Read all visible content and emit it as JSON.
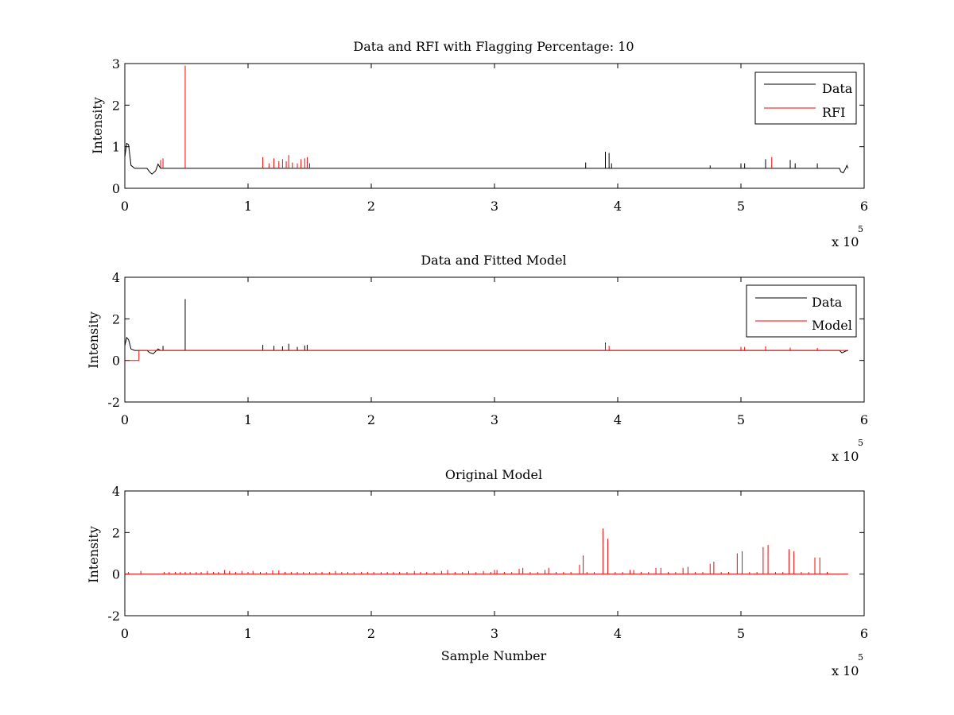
{
  "chart_data": [
    {
      "type": "line",
      "title": "Data and RFI with Flagging Percentage: 10",
      "xlabel": "",
      "ylabel": "Intensity",
      "xlim": [
        0,
        600000
      ],
      "ylim": [
        0,
        3
      ],
      "x_ticks": [
        0,
        100000,
        200000,
        300000,
        400000,
        500000,
        600000
      ],
      "x_tick_labels": [
        "0",
        "1",
        "2",
        "3",
        "4",
        "5",
        "6"
      ],
      "y_ticks": [
        0,
        1,
        2,
        3
      ],
      "y_tick_labels": [
        "0",
        "1",
        "2",
        "3"
      ],
      "x_exponent": {
        "base": "x 10",
        "power": "5"
      },
      "legend": {
        "position": "top-right",
        "entries": [
          "Data",
          "RFI"
        ]
      },
      "series": [
        {
          "name": "Data",
          "color": "#000000",
          "baseline": 0.48,
          "points": [
            [
              0,
              0.75
            ],
            [
              1500,
              1.08
            ],
            [
              3000,
              1.05
            ],
            [
              5000,
              0.55
            ],
            [
              8000,
              0.48
            ],
            [
              18000,
              0.48
            ],
            [
              20000,
              0.4
            ],
            [
              22000,
              0.34
            ],
            [
              25000,
              0.42
            ],
            [
              27000,
              0.58
            ],
            [
              29000,
              0.48
            ],
            [
              40000,
              0.48
            ],
            [
              580000,
              0.48
            ],
            [
              581000,
              0.4
            ],
            [
              583000,
              0.37
            ],
            [
              585000,
              0.48
            ],
            [
              586000,
              0.55
            ],
            [
              587000,
              0.48
            ]
          ],
          "spikes": [
            [
              374000,
              0.62
            ],
            [
              390000,
              0.88
            ],
            [
              393000,
              0.85
            ],
            [
              395000,
              0.6
            ],
            [
              475000,
              0.55
            ],
            [
              500000,
              0.6
            ],
            [
              503000,
              0.6
            ],
            [
              520000,
              0.7
            ],
            [
              540000,
              0.68
            ],
            [
              544000,
              0.6
            ],
            [
              562000,
              0.6
            ]
          ]
        },
        {
          "name": "RFI",
          "color": "#ff0000",
          "spikes": [
            [
              29000,
              0.68
            ],
            [
              31000,
              0.72
            ],
            [
              49000,
              2.95
            ],
            [
              112000,
              0.75
            ],
            [
              117000,
              0.6
            ],
            [
              121000,
              0.72
            ],
            [
              125000,
              0.65
            ],
            [
              128000,
              0.7
            ],
            [
              131000,
              0.65
            ],
            [
              133000,
              0.8
            ],
            [
              136000,
              0.62
            ],
            [
              140000,
              0.6
            ],
            [
              143000,
              0.7
            ],
            [
              146000,
              0.72
            ],
            [
              148000,
              0.75
            ],
            [
              150000,
              0.6
            ],
            [
              525000,
              0.75
            ]
          ]
        }
      ]
    },
    {
      "type": "line",
      "title": "Data and Fitted Model",
      "xlabel": "",
      "ylabel": "Intensity",
      "xlim": [
        0,
        600000
      ],
      "ylim": [
        -2,
        4
      ],
      "x_ticks": [
        0,
        100000,
        200000,
        300000,
        400000,
        500000,
        600000
      ],
      "x_tick_labels": [
        "0",
        "1",
        "2",
        "3",
        "4",
        "5",
        "6"
      ],
      "y_ticks": [
        -2,
        0,
        2,
        4
      ],
      "y_tick_labels": [
        "-2",
        "0",
        "2",
        "4"
      ],
      "x_exponent": {
        "base": "x 10",
        "power": "5"
      },
      "legend": {
        "position": "top-right",
        "entries": [
          "Data",
          "Model"
        ]
      },
      "series": [
        {
          "name": "Data",
          "color": "#000000",
          "baseline": 0.48,
          "points": [
            [
              0,
              0.7
            ],
            [
              1500,
              1.1
            ],
            [
              3000,
              1.0
            ],
            [
              5000,
              0.55
            ],
            [
              8000,
              0.48
            ],
            [
              18000,
              0.48
            ],
            [
              20000,
              0.38
            ],
            [
              23000,
              0.32
            ],
            [
              27000,
              0.55
            ],
            [
              29000,
              0.48
            ],
            [
              580000,
              0.48
            ],
            [
              582000,
              0.36
            ],
            [
              585000,
              0.45
            ],
            [
              587000,
              0.48
            ]
          ],
          "spikes": [
            [
              31000,
              0.7
            ],
            [
              49000,
              2.95
            ],
            [
              112000,
              0.75
            ],
            [
              121000,
              0.7
            ],
            [
              128000,
              0.68
            ],
            [
              133000,
              0.8
            ],
            [
              140000,
              0.65
            ],
            [
              146000,
              0.72
            ],
            [
              148000,
              0.75
            ],
            [
              390000,
              0.85
            ]
          ]
        },
        {
          "name": "Model",
          "color": "#ff0000",
          "points": [
            [
              0,
              0.0
            ],
            [
              11500,
              0.0
            ],
            [
              11500,
              0.48
            ],
            [
              587000,
              0.48
            ]
          ],
          "spikes": [
            [
              390000,
              0.8
            ],
            [
              393000,
              0.7
            ],
            [
              500000,
              0.65
            ],
            [
              503000,
              0.65
            ],
            [
              520000,
              0.68
            ],
            [
              540000,
              0.62
            ],
            [
              562000,
              0.6
            ]
          ]
        }
      ]
    },
    {
      "type": "line",
      "title": "Original Model",
      "xlabel": "Sample Number",
      "ylabel": "Intensity",
      "xlim": [
        0,
        600000
      ],
      "ylim": [
        -2,
        4
      ],
      "x_ticks": [
        0,
        100000,
        200000,
        300000,
        400000,
        500000,
        600000
      ],
      "x_tick_labels": [
        "0",
        "1",
        "2",
        "3",
        "4",
        "5",
        "6"
      ],
      "y_ticks": [
        -2,
        0,
        2,
        4
      ],
      "y_tick_labels": [
        "-2",
        "0",
        "2",
        "4"
      ],
      "x_exponent": {
        "base": "x 10",
        "power": "5"
      },
      "series": [
        {
          "name": "",
          "color": "#ff0000",
          "baseline": 0.0,
          "spikes": [
            [
              3000,
              0.1
            ],
            [
              13000,
              0.15
            ],
            [
              32000,
              0.1
            ],
            [
              36000,
              0.1
            ],
            [
              41000,
              0.1
            ],
            [
              45000,
              0.1
            ],
            [
              49000,
              0.1
            ],
            [
              53000,
              0.1
            ],
            [
              58000,
              0.1
            ],
            [
              62000,
              0.1
            ],
            [
              67000,
              0.15
            ],
            [
              72000,
              0.1
            ],
            [
              76000,
              0.1
            ],
            [
              81000,
              0.2
            ],
            [
              85000,
              0.15
            ],
            [
              90000,
              0.1
            ],
            [
              95000,
              0.15
            ],
            [
              100000,
              0.1
            ],
            [
              104000,
              0.15
            ],
            [
              110000,
              0.1
            ],
            [
              115000,
              0.1
            ],
            [
              120000,
              0.18
            ],
            [
              125000,
              0.18
            ],
            [
              130000,
              0.1
            ],
            [
              135000,
              0.1
            ],
            [
              140000,
              0.1
            ],
            [
              145000,
              0.1
            ],
            [
              150000,
              0.1
            ],
            [
              155000,
              0.1
            ],
            [
              160000,
              0.1
            ],
            [
              166000,
              0.1
            ],
            [
              171000,
              0.15
            ],
            [
              176000,
              0.1
            ],
            [
              181000,
              0.1
            ],
            [
              186000,
              0.1
            ],
            [
              192000,
              0.1
            ],
            [
              197000,
              0.1
            ],
            [
              202000,
              0.1
            ],
            [
              208000,
              0.1
            ],
            [
              213000,
              0.1
            ],
            [
              218000,
              0.1
            ],
            [
              223000,
              0.1
            ],
            [
              229000,
              0.1
            ],
            [
              235000,
              0.15
            ],
            [
              240000,
              0.1
            ],
            [
              245000,
              0.1
            ],
            [
              251000,
              0.1
            ],
            [
              257000,
              0.15
            ],
            [
              262000,
              0.2
            ],
            [
              268000,
              0.1
            ],
            [
              274000,
              0.1
            ],
            [
              279000,
              0.15
            ],
            [
              285000,
              0.1
            ],
            [
              291000,
              0.15
            ],
            [
              297000,
              0.1
            ],
            [
              300000,
              0.2
            ],
            [
              302000,
              0.2
            ],
            [
              308000,
              0.1
            ],
            [
              314000,
              0.1
            ],
            [
              320000,
              0.25
            ],
            [
              323000,
              0.3
            ],
            [
              329000,
              0.1
            ],
            [
              335000,
              0.1
            ],
            [
              341000,
              0.2
            ],
            [
              344000,
              0.3
            ],
            [
              350000,
              0.1
            ],
            [
              356000,
              0.1
            ],
            [
              362000,
              0.1
            ],
            [
              369000,
              0.45
            ],
            [
              372000,
              0.9
            ],
            [
              375000,
              0.1
            ],
            [
              381000,
              0.1
            ],
            [
              388000,
              2.2
            ],
            [
              392000,
              1.7
            ],
            [
              398000,
              0.1
            ],
            [
              404000,
              0.1
            ],
            [
              410000,
              0.2
            ],
            [
              413000,
              0.2
            ],
            [
              419000,
              0.1
            ],
            [
              425000,
              0.1
            ],
            [
              431000,
              0.3
            ],
            [
              435000,
              0.3
            ],
            [
              441000,
              0.1
            ],
            [
              447000,
              0.1
            ],
            [
              453000,
              0.3
            ],
            [
              457000,
              0.35
            ],
            [
              463000,
              0.1
            ],
            [
              469000,
              0.1
            ],
            [
              475000,
              0.5
            ],
            [
              478000,
              0.6
            ],
            [
              484000,
              0.1
            ],
            [
              490000,
              0.1
            ],
            [
              497000,
              1.0
            ],
            [
              501000,
              1.1
            ],
            [
              507000,
              0.1
            ],
            [
              513000,
              0.1
            ],
            [
              518000,
              1.3
            ],
            [
              522000,
              1.4
            ],
            [
              528000,
              0.1
            ],
            [
              534000,
              0.1
            ],
            [
              539000,
              1.2
            ],
            [
              543000,
              1.1
            ],
            [
              549000,
              0.1
            ],
            [
              555000,
              0.1
            ],
            [
              560000,
              0.8
            ],
            [
              564000,
              0.8
            ],
            [
              570000,
              0.1
            ]
          ]
        }
      ]
    }
  ]
}
